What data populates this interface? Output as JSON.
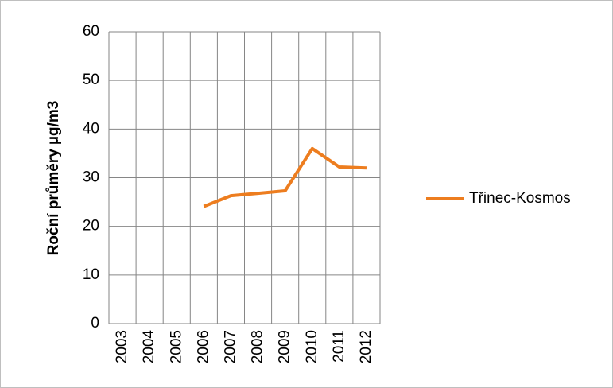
{
  "chart_data": {
    "type": "line",
    "y_label": "Roční průměry µg/m3",
    "categories": [
      "2003",
      "2004",
      "2005",
      "2006",
      "2007",
      "2008",
      "2009",
      "2010",
      "2011",
      "2012"
    ],
    "series": [
      {
        "name": "Třinec-Kosmos",
        "color": "#ed7d1f",
        "values": [
          null,
          null,
          null,
          24.1,
          26.3,
          26.8,
          27.3,
          36.0,
          32.2,
          32.0
        ]
      }
    ],
    "ylim": [
      0,
      60
    ],
    "yticks": [
      0,
      10,
      20,
      30,
      40,
      50,
      60
    ],
    "grid": true,
    "legend": "right"
  }
}
